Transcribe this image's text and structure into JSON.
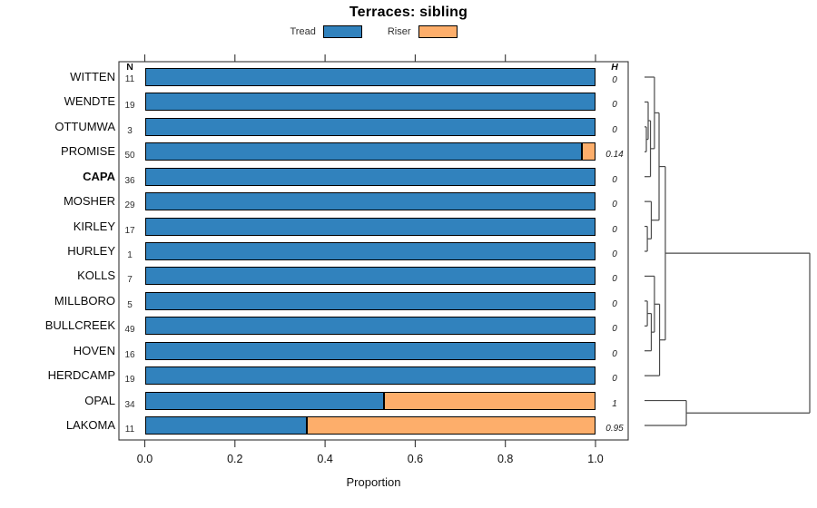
{
  "title": "Terraces: sibling",
  "legend": [
    {
      "label": "Tread",
      "color": "#3182bd"
    },
    {
      "label": "Riser",
      "color": "#fdae6b"
    }
  ],
  "columns": {
    "n_header": "N",
    "h_header": "H"
  },
  "chart_data": {
    "type": "bar",
    "orientation": "horizontal",
    "stacked": true,
    "title": "Terraces: sibling",
    "xlabel": "Proportion",
    "xlim": [
      0.0,
      1.0
    ],
    "xticks": [
      "0.0",
      "0.2",
      "0.4",
      "0.6",
      "0.8",
      "1.0"
    ],
    "series_names": [
      "Tread",
      "Riser"
    ],
    "colors": {
      "tread": "#3182bd",
      "riser": "#fdae6b"
    },
    "rows": [
      {
        "site": "WITTEN",
        "n": 11,
        "tread": 1.0,
        "riser": 0.0,
        "h": "0",
        "bold": false
      },
      {
        "site": "WENDTE",
        "n": 19,
        "tread": 1.0,
        "riser": 0.0,
        "h": "0",
        "bold": false
      },
      {
        "site": "OTTUMWA",
        "n": 3,
        "tread": 1.0,
        "riser": 0.0,
        "h": "0",
        "bold": false
      },
      {
        "site": "PROMISE",
        "n": 50,
        "tread": 0.97,
        "riser": 0.03,
        "h": "0.14",
        "bold": false
      },
      {
        "site": "CAPA",
        "n": 36,
        "tread": 1.0,
        "riser": 0.0,
        "h": "0",
        "bold": true
      },
      {
        "site": "MOSHER",
        "n": 29,
        "tread": 1.0,
        "riser": 0.0,
        "h": "0",
        "bold": false
      },
      {
        "site": "KIRLEY",
        "n": 17,
        "tread": 1.0,
        "riser": 0.0,
        "h": "0",
        "bold": false
      },
      {
        "site": "HURLEY",
        "n": 1,
        "tread": 1.0,
        "riser": 0.0,
        "h": "0",
        "bold": false
      },
      {
        "site": "KOLLS",
        "n": 7,
        "tread": 1.0,
        "riser": 0.0,
        "h": "0",
        "bold": false
      },
      {
        "site": "MILLBORO",
        "n": 5,
        "tread": 1.0,
        "riser": 0.0,
        "h": "0",
        "bold": false
      },
      {
        "site": "BULLCREEK",
        "n": 49,
        "tread": 1.0,
        "riser": 0.0,
        "h": "0",
        "bold": false
      },
      {
        "site": "HOVEN",
        "n": 16,
        "tread": 1.0,
        "riser": 0.0,
        "h": "0",
        "bold": false
      },
      {
        "site": "HERDCAMP",
        "n": 19,
        "tread": 1.0,
        "riser": 0.0,
        "h": "0",
        "bold": false
      },
      {
        "site": "OPAL",
        "n": 34,
        "tread": 0.53,
        "riser": 0.47,
        "h": "1",
        "bold": false
      },
      {
        "site": "LAKOMA",
        "n": 11,
        "tread": 0.36,
        "riser": 0.64,
        "h": "0.95",
        "bold": false
      }
    ],
    "dendrogram": {
      "note": "leaves are row indices 0-14 top to bottom; node id 15+k refers to merge k; heights normalized 0-1 of dendrogram width",
      "merges": [
        [
          2,
          3,
          0.011
        ],
        [
          1,
          15,
          0.022
        ],
        [
          16,
          4,
          0.036
        ],
        [
          0,
          17,
          0.06
        ],
        [
          6,
          7,
          0.017
        ],
        [
          5,
          19,
          0.041
        ],
        [
          18,
          20,
          0.088
        ],
        [
          9,
          10,
          0.017
        ],
        [
          22,
          11,
          0.041
        ],
        [
          8,
          23,
          0.06
        ],
        [
          24,
          12,
          0.091
        ],
        [
          21,
          25,
          0.126
        ],
        [
          13,
          14,
          0.253
        ],
        [
          26,
          27,
          1.0
        ]
      ]
    }
  }
}
